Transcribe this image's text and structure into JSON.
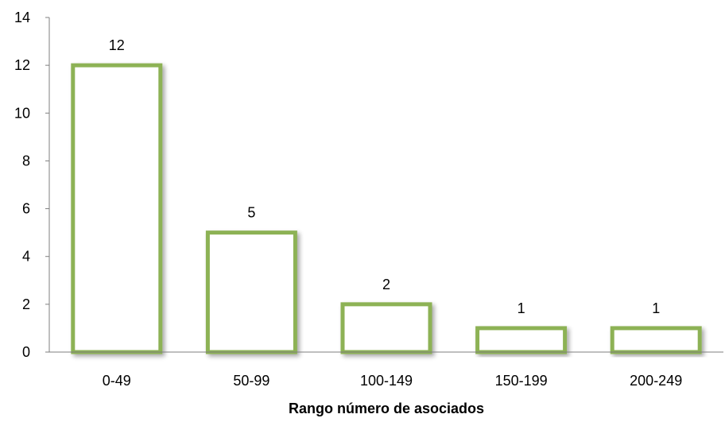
{
  "chart_data": {
    "type": "bar",
    "title": "",
    "xlabel": "Rango número de asociados",
    "ylabel": "",
    "categories": [
      "0-49",
      "50-99",
      "100-149",
      "150-199",
      "200-249"
    ],
    "values": [
      12,
      5,
      2,
      1,
      1
    ],
    "data_labels": [
      "12",
      "5",
      "2",
      "1",
      "1"
    ],
    "ylim": [
      0,
      14
    ],
    "yticks": [
      "0",
      "2",
      "4",
      "6",
      "8",
      "10",
      "12",
      "14"
    ],
    "grid": false,
    "legend": "none",
    "colors": {
      "bar_fill": "#ffffff",
      "bar_border": "#8db255",
      "axis": "#7f7f7f",
      "shadow": "#bfbfbf"
    }
  }
}
